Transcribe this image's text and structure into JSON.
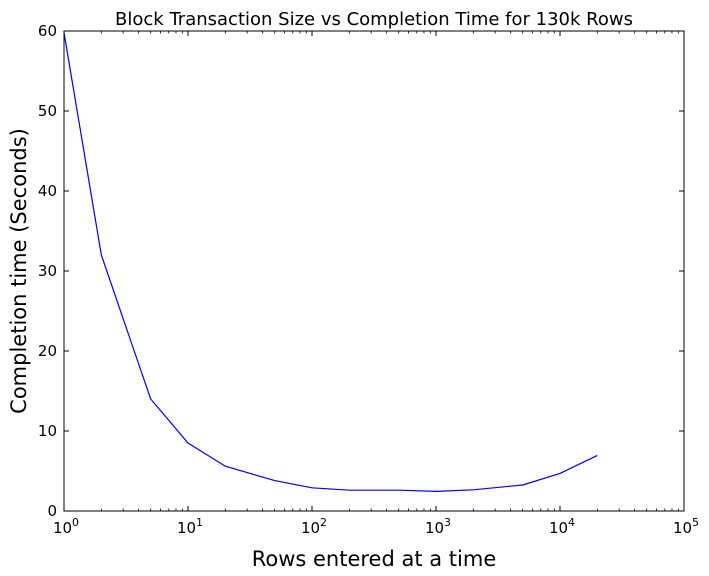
{
  "chart_data": {
    "type": "line",
    "title": "Block Transaction Size vs Completion Time for 130k Rows",
    "xlabel": "Rows entered at a time",
    "ylabel": "Completion time (Seconds)",
    "xscale": "log",
    "xlim": [
      1,
      100000
    ],
    "ylim": [
      0,
      60
    ],
    "grid": false,
    "x_ticks": [
      {
        "value": 1,
        "base": "10",
        "exp": "0"
      },
      {
        "value": 10,
        "base": "10",
        "exp": "1"
      },
      {
        "value": 100,
        "base": "10",
        "exp": "2"
      },
      {
        "value": 1000,
        "base": "10",
        "exp": "3"
      },
      {
        "value": 10000,
        "base": "10",
        "exp": "4"
      },
      {
        "value": 100000,
        "base": "10",
        "exp": "5"
      }
    ],
    "y_ticks": [
      0,
      10,
      20,
      30,
      40,
      50,
      60
    ],
    "line_color": "#0000ff",
    "series": [
      {
        "x": [
          1,
          2,
          5,
          10,
          20,
          50,
          100,
          200,
          500,
          1000,
          2000,
          5000,
          10000,
          20000
        ],
        "y": [
          59.8,
          32.0,
          14.0,
          8.5,
          5.6,
          3.8,
          2.9,
          2.6,
          2.6,
          2.45,
          2.65,
          3.25,
          4.7,
          6.95
        ]
      }
    ]
  }
}
